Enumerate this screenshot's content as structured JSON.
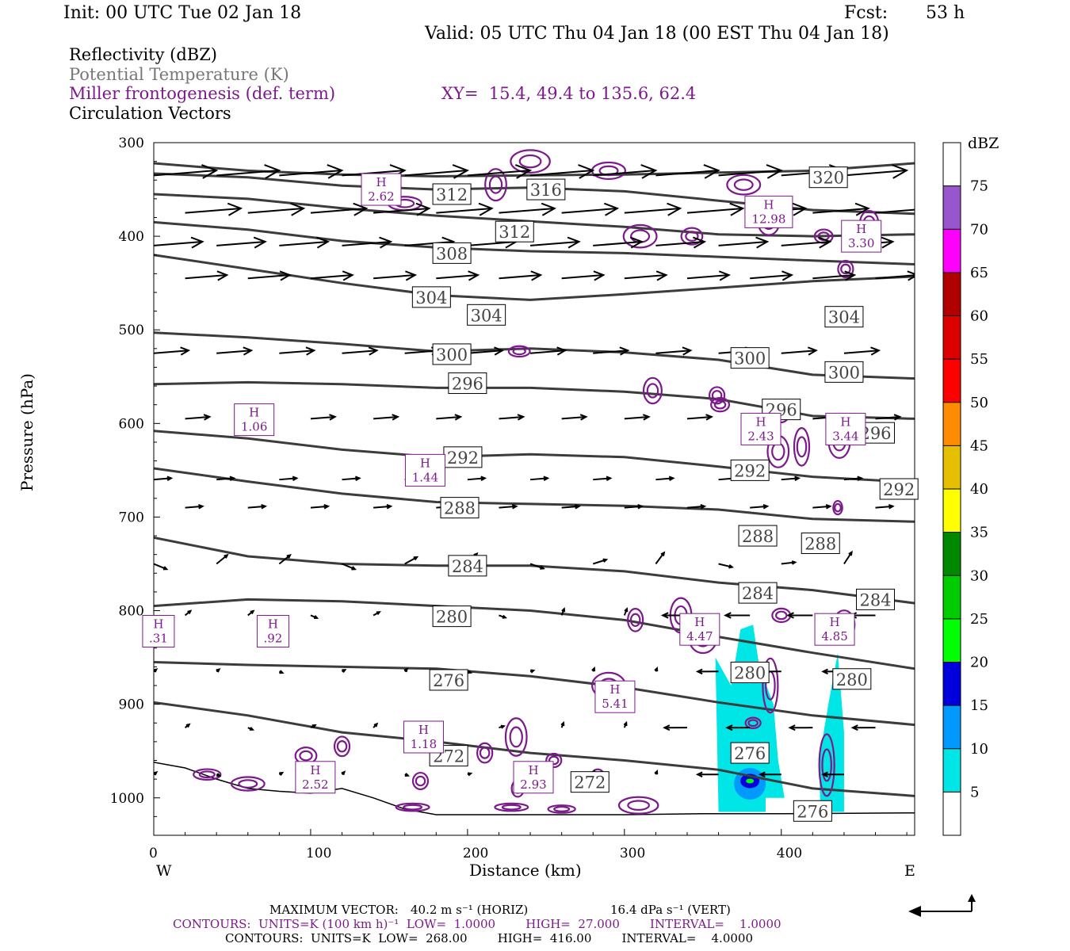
{
  "header": {
    "init": "Init: 00 UTC Tue 02 Jan 18",
    "fcst_label": "Fcst:",
    "fcst_value": "53 h",
    "valid": "Valid: 05 UTC Thu 04 Jan 18 (00 EST Thu 04 Jan 18)"
  },
  "legend": {
    "reflectivity": "Reflectivity (dBZ)",
    "theta": "Potential Temperature (K)",
    "miller": "Miller frontogenesis (def. term)",
    "xy": "XY=  15.4, 49.4 to 135.6, 62.4",
    "vectors": "Circulation Vectors"
  },
  "colors": {
    "theta": "#3c3c3c",
    "miller": "#7b1a8a",
    "theta_text": "#777777"
  },
  "chart_data": {
    "type": "cross-section",
    "xlabel": "Distance (km)",
    "ylabel": "Pressure (hPa)",
    "x_left_label": "W",
    "x_right_label": "E",
    "xlim": [
      0,
      485
    ],
    "ylim": [
      1040,
      300
    ],
    "x_ticks": [
      0,
      100,
      200,
      300,
      400
    ],
    "x_tick_labels": [
      "0",
      "100",
      "200",
      "300",
      "400"
    ],
    "y_ticks": [
      300,
      400,
      500,
      600,
      700,
      800,
      900,
      1000
    ],
    "y_tick_labels": [
      "300",
      "400",
      "500",
      "600",
      "700",
      "800",
      "900",
      "1000"
    ],
    "colorbar": {
      "unit": "dBZ",
      "labels": [
        "5",
        "10",
        "15",
        "20",
        "25",
        "30",
        "35",
        "40",
        "45",
        "50",
        "55",
        "60",
        "65",
        "70",
        "75"
      ],
      "colors": [
        "#ffffff",
        "#00e5e5",
        "#0099ff",
        "#0000dd",
        "#00ff00",
        "#00cc00",
        "#008800",
        "#ffff00",
        "#e6c000",
        "#ff8c00",
        "#ff0000",
        "#dd0000",
        "#b00000",
        "#ff00ff",
        "#9955cc",
        "#ffffff"
      ]
    },
    "isentropes": [
      {
        "label": "320",
        "points": [
          [
            0,
            322
          ],
          [
            60,
            330
          ],
          [
            120,
            334
          ],
          [
            180,
            336
          ],
          [
            240,
            335
          ],
          [
            300,
            334
          ],
          [
            360,
            332
          ],
          [
            420,
            330
          ],
          [
            485,
            322
          ]
        ]
      },
      {
        "label": "316",
        "points": [
          [
            0,
            333
          ],
          [
            60,
            337
          ],
          [
            120,
            346
          ],
          [
            180,
            350
          ],
          [
            240,
            348
          ],
          [
            300,
            352
          ],
          [
            360,
            362
          ],
          [
            420,
            372
          ],
          [
            485,
            376
          ]
        ]
      },
      {
        "label": "312",
        "points": [
          [
            0,
            355
          ],
          [
            60,
            360
          ],
          [
            120,
            370
          ],
          [
            180,
            378
          ],
          [
            240,
            384
          ],
          [
            300,
            390
          ],
          [
            360,
            398
          ],
          [
            420,
            400
          ],
          [
            485,
            398
          ]
        ]
      },
      {
        "label": "308",
        "points": [
          [
            0,
            385
          ],
          [
            60,
            393
          ],
          [
            120,
            405
          ],
          [
            180,
            412
          ],
          [
            240,
            416
          ],
          [
            300,
            418
          ],
          [
            360,
            422
          ],
          [
            420,
            426
          ],
          [
            485,
            430
          ]
        ]
      },
      {
        "label": "304",
        "points": [
          [
            0,
            420
          ],
          [
            60,
            435
          ],
          [
            120,
            450
          ],
          [
            180,
            463
          ],
          [
            240,
            468
          ],
          [
            300,
            462
          ],
          [
            360,
            455
          ],
          [
            420,
            448
          ],
          [
            485,
            443
          ]
        ]
      },
      {
        "label": "300",
        "points": [
          [
            0,
            503
          ],
          [
            60,
            508
          ],
          [
            120,
            515
          ],
          [
            180,
            523
          ],
          [
            240,
            520
          ],
          [
            300,
            524
          ],
          [
            360,
            532
          ],
          [
            420,
            548
          ],
          [
            485,
            552
          ]
        ]
      },
      {
        "label": "296",
        "points": [
          [
            0,
            558
          ],
          [
            60,
            556
          ],
          [
            120,
            558
          ],
          [
            180,
            562
          ],
          [
            240,
            562
          ],
          [
            300,
            566
          ],
          [
            360,
            574
          ],
          [
            420,
            592
          ],
          [
            485,
            595
          ]
        ]
      },
      {
        "label": "292",
        "points": [
          [
            0,
            608
          ],
          [
            60,
            616
          ],
          [
            120,
            628
          ],
          [
            180,
            636
          ],
          [
            240,
            633
          ],
          [
            300,
            636
          ],
          [
            360,
            646
          ],
          [
            420,
            657
          ],
          [
            485,
            663
          ]
        ]
      },
      {
        "label": "288",
        "points": [
          [
            0,
            648
          ],
          [
            60,
            662
          ],
          [
            120,
            675
          ],
          [
            180,
            684
          ],
          [
            240,
            686
          ],
          [
            300,
            688
          ],
          [
            360,
            692
          ],
          [
            420,
            702
          ],
          [
            485,
            705
          ]
        ]
      },
      {
        "label": "284",
        "points": [
          [
            0,
            722
          ],
          [
            60,
            742
          ],
          [
            120,
            750
          ],
          [
            180,
            752
          ],
          [
            240,
            752
          ],
          [
            300,
            758
          ],
          [
            360,
            770
          ],
          [
            420,
            778
          ],
          [
            485,
            792
          ]
        ]
      },
      {
        "label": "280",
        "points": [
          [
            0,
            795
          ],
          [
            60,
            788
          ],
          [
            120,
            790
          ],
          [
            180,
            795
          ],
          [
            240,
            800
          ],
          [
            300,
            810
          ],
          [
            360,
            828
          ],
          [
            420,
            845
          ],
          [
            485,
            862
          ]
        ]
      },
      {
        "label": "276",
        "points": [
          [
            0,
            855
          ],
          [
            60,
            858
          ],
          [
            120,
            860
          ],
          [
            180,
            862
          ],
          [
            240,
            870
          ],
          [
            300,
            882
          ],
          [
            360,
            898
          ],
          [
            420,
            912
          ],
          [
            485,
            922
          ]
        ]
      },
      {
        "label": "272",
        "points": [
          [
            0,
            898
          ],
          [
            60,
            912
          ],
          [
            120,
            930
          ],
          [
            180,
            940
          ],
          [
            240,
            952
          ],
          [
            300,
            960
          ],
          [
            360,
            970
          ],
          [
            420,
            990
          ],
          [
            485,
            998
          ]
        ]
      }
    ],
    "theta_labels": [
      {
        "text": "320",
        "x": 430,
        "y": 337
      },
      {
        "text": "316",
        "x": 250,
        "y": 350
      },
      {
        "text": "312",
        "x": 190,
        "y": 355
      },
      {
        "text": "312",
        "x": 230,
        "y": 395
      },
      {
        "text": "308",
        "x": 190,
        "y": 418
      },
      {
        "text": "304",
        "x": 177,
        "y": 465
      },
      {
        "text": "304",
        "x": 212,
        "y": 484
      },
      {
        "text": "304",
        "x": 440,
        "y": 486
      },
      {
        "text": "300",
        "x": 190,
        "y": 526
      },
      {
        "text": "300",
        "x": 380,
        "y": 530
      },
      {
        "text": "300",
        "x": 440,
        "y": 545
      },
      {
        "text": "296",
        "x": 200,
        "y": 557
      },
      {
        "text": "296",
        "x": 400,
        "y": 585
      },
      {
        "text": "296",
        "x": 460,
        "y": 610
      },
      {
        "text": "292",
        "x": 197,
        "y": 636
      },
      {
        "text": "292",
        "x": 380,
        "y": 650
      },
      {
        "text": "292",
        "x": 475,
        "y": 670
      },
      {
        "text": "288",
        "x": 195,
        "y": 690
      },
      {
        "text": "288",
        "x": 385,
        "y": 720
      },
      {
        "text": "288",
        "x": 425,
        "y": 728
      },
      {
        "text": "284",
        "x": 200,
        "y": 752
      },
      {
        "text": "284",
        "x": 385,
        "y": 781
      },
      {
        "text": "284",
        "x": 460,
        "y": 788
      },
      {
        "text": "280",
        "x": 190,
        "y": 806
      },
      {
        "text": "280",
        "x": 380,
        "y": 866
      },
      {
        "text": "280",
        "x": 445,
        "y": 873
      },
      {
        "text": "276",
        "x": 188,
        "y": 874
      },
      {
        "text": "276",
        "x": 380,
        "y": 952
      },
      {
        "text": "272",
        "x": 188,
        "y": 955
      },
      {
        "text": "272",
        "x": 278,
        "y": 983
      },
      {
        "text": "276",
        "x": 420,
        "y": 1014
      }
    ],
    "frontogenesis_highs": [
      {
        "text": "H",
        "value": "2.62",
        "x": 145,
        "y": 350
      },
      {
        "text": "H",
        "value": "12.98",
        "x": 392,
        "y": 374
      },
      {
        "text": "H",
        "value": "3.30",
        "x": 451,
        "y": 400
      },
      {
        "text": "H",
        "value": "1.06",
        "x": 64,
        "y": 596
      },
      {
        "text": "H",
        "value": "2.43",
        "x": 387,
        "y": 606
      },
      {
        "text": "H",
        "value": "3.44",
        "x": 441,
        "y": 606
      },
      {
        "text": "H",
        "value": "1.44",
        "x": 173,
        "y": 650
      },
      {
        "text": "H",
        "value": "4.47",
        "x": 348,
        "y": 820
      },
      {
        "text": "H",
        "value": "4.85",
        "x": 434,
        "y": 820
      },
      {
        "text": "H",
        "value": ".92",
        "x": 76,
        "y": 822
      },
      {
        "text": "H",
        "value": ".31",
        "x": 3,
        "y": 822
      },
      {
        "text": "H",
        "value": "5.41",
        "x": 294,
        "y": 892
      },
      {
        "text": "H",
        "value": "1.18",
        "x": 172,
        "y": 935
      },
      {
        "text": "H",
        "value": "2.52",
        "x": 103,
        "y": 978
      },
      {
        "text": "H",
        "value": "2.93",
        "x": 242,
        "y": 978
      }
    ],
    "footer": {
      "max_vector_label": "MAXIMUM VECTOR:",
      "max_horiz": "40.2 m s⁻¹ (HORIZ)",
      "max_vert": "16.4 dPa s⁻¹ (VERT)",
      "contours1": "CONTOURS:  UNITS=K (100 km h)⁻¹  LOW=  1.0000        HIGH=  27.000        INTERVAL=    1.0000",
      "contours2": "CONTOURS:  UNITS=K  LOW=  268.00        HIGH=  416.00        INTERVAL=    4.0000"
    }
  }
}
